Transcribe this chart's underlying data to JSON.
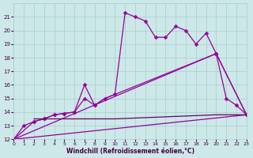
{
  "xlabel": "Windchill (Refroidissement éolien,°C)",
  "xlim": [
    0,
    23
  ],
  "ylim": [
    12,
    22
  ],
  "yticks": [
    12,
    13,
    14,
    15,
    16,
    17,
    18,
    19,
    20,
    21
  ],
  "xticks": [
    0,
    1,
    2,
    3,
    4,
    5,
    6,
    7,
    8,
    9,
    10,
    11,
    12,
    13,
    14,
    15,
    16,
    17,
    18,
    19,
    20,
    21,
    22,
    23
  ],
  "bg_color": "#cce8e8",
  "line_color": "#990099",
  "grid_color": "#aacccc",
  "series": [
    {
      "x": [
        0,
        1,
        2,
        3,
        4,
        5,
        6,
        7,
        8,
        9,
        10,
        11,
        12,
        13,
        14,
        15,
        16,
        17,
        18,
        19,
        20,
        21,
        22,
        23
      ],
      "y": [
        12,
        13.0,
        13.3,
        13.5,
        13.8,
        13.9,
        14.0,
        16.0,
        14.5,
        15.0,
        15.3,
        21.3,
        21.0,
        20.7,
        19.5,
        19.5,
        20.3,
        20.0,
        19.0,
        19.8,
        18.3,
        15.0,
        14.5,
        13.8
      ]
    },
    {
      "comment": "Triangle line: (0,12) -> (20,18.3) -> (23,13.8) with markers",
      "x": [
        0,
        20,
        23
      ],
      "y": [
        12,
        18.3,
        13.8
      ]
    },
    {
      "comment": "Straight diagonal: (0,12) to (23,13.8)",
      "x": [
        0,
        23
      ],
      "y": [
        12,
        13.8
      ]
    },
    {
      "x": [
        0,
        2,
        3,
        4,
        5,
        6,
        7,
        8,
        9,
        20,
        23
      ],
      "y": [
        12,
        13.3,
        13.5,
        13.8,
        13.9,
        14.0,
        15.0,
        14.5,
        15.0,
        18.3,
        13.8
      ]
    },
    {
      "x": [
        2,
        10,
        20,
        23
      ],
      "y": [
        13.5,
        13.5,
        13.8,
        13.8
      ]
    }
  ]
}
